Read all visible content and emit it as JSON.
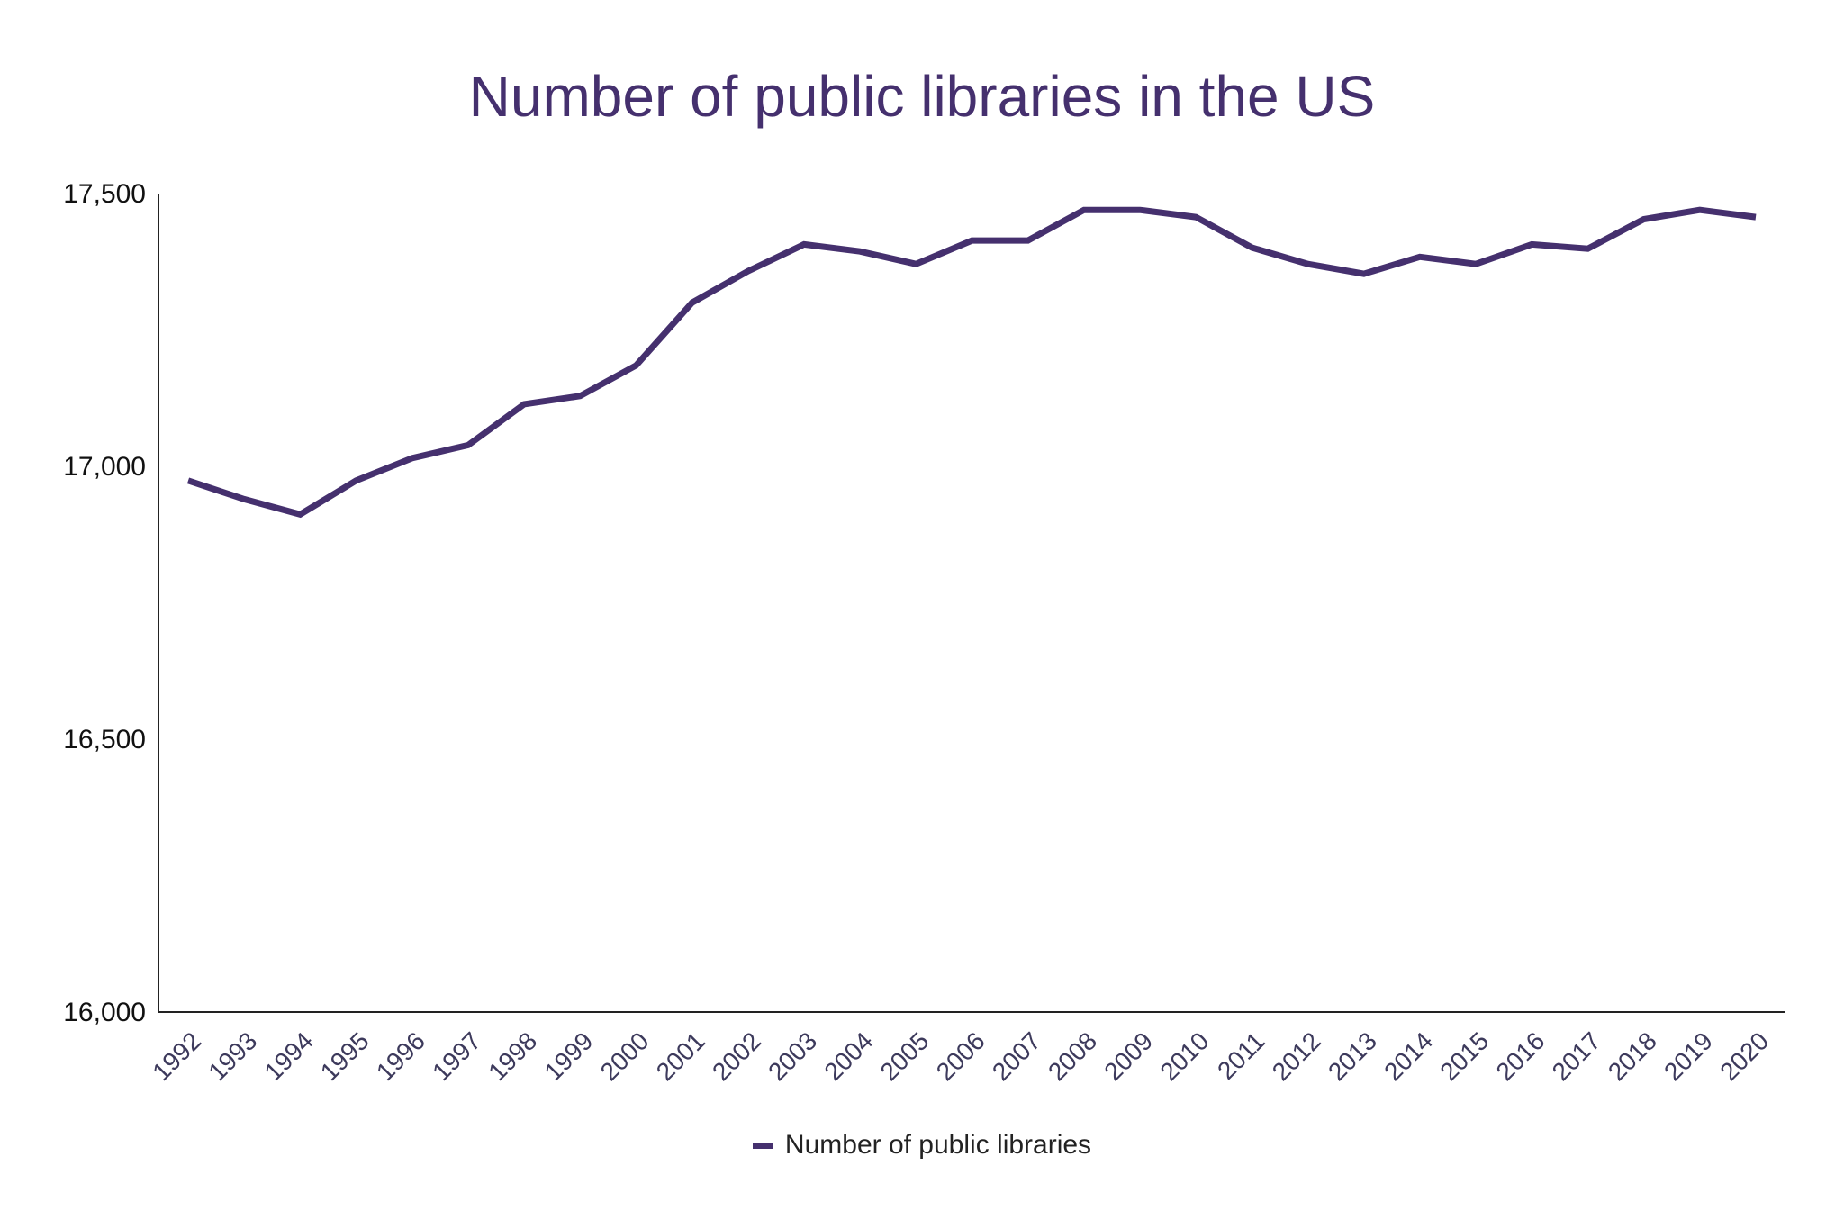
{
  "chart_data": {
    "type": "line",
    "title": "Number of public libraries in the US",
    "xlabel": "",
    "ylabel": "",
    "categories": [
      "1992",
      "1993",
      "1994",
      "1995",
      "1996",
      "1997",
      "1998",
      "1999",
      "2000",
      "2001",
      "2002",
      "2003",
      "2004",
      "2005",
      "2006",
      "2007",
      "2008",
      "2009",
      "2010",
      "2011",
      "2012",
      "2013",
      "2014",
      "2015",
      "2016",
      "2017",
      "2018",
      "2019",
      "2020"
    ],
    "series": [
      {
        "name": "Number of public libraries",
        "values": [
          16974,
          16940,
          16912,
          16974,
          17015,
          17039,
          17114,
          17129,
          17185,
          17300,
          17358,
          17407,
          17394,
          17371,
          17414,
          17414,
          17470,
          17470,
          17457,
          17401,
          17371,
          17353,
          17384,
          17371,
          17407,
          17399,
          17453,
          17470,
          17457
        ]
      }
    ],
    "ylim": [
      16000,
      17500
    ],
    "yticks": [
      16000,
      16500,
      17000,
      17500
    ],
    "ytick_labels": [
      "16,000",
      "16,500",
      "17,000",
      "17,500"
    ],
    "grid": false,
    "legend_position": "bottom",
    "colors": {
      "line": "#45306e",
      "title": "#45306e",
      "axis": "#222222"
    }
  }
}
